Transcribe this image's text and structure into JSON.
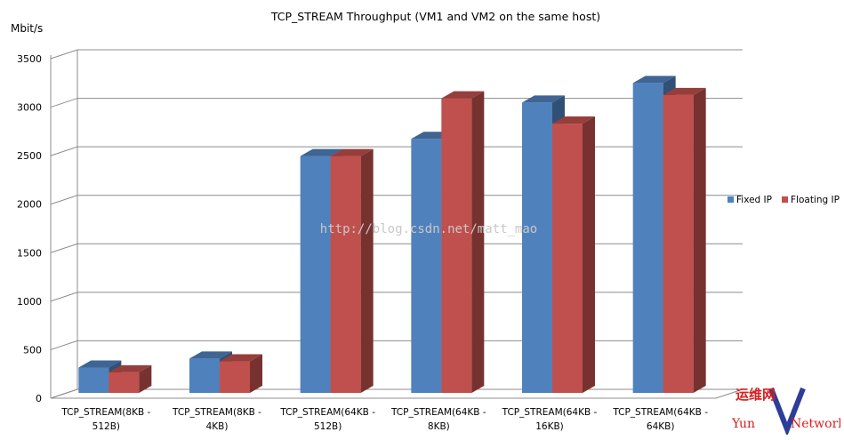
{
  "chart_data": {
    "type": "bar",
    "title": "TCP_STREAM Throughput (VM1 and VM2 on the same host)",
    "ylabel": "Mbit/s",
    "xlabel": "",
    "ylim": [
      0,
      3500
    ],
    "yticks": [
      0,
      500,
      1000,
      1500,
      2000,
      2500,
      3000,
      3500
    ],
    "grid": true,
    "legend_position": "right",
    "categories": [
      "TCP_STREAM(8KB - 512B)",
      "TCP_STREAM(8KB - 4KB)",
      "TCP_STREAM(64KB - 512B)",
      "TCP_STREAM(64KB - 8KB)",
      "TCP_STREAM(64KB - 16KB)",
      "TCP_STREAM(64KB - 64KB)"
    ],
    "category_lines": [
      [
        "TCP_STREAM(8KB -",
        "512B)"
      ],
      [
        "TCP_STREAM(8KB -",
        "4KB)"
      ],
      [
        "TCP_STREAM(64KB -",
        "512B)"
      ],
      [
        "TCP_STREAM(64KB -",
        "8KB)"
      ],
      [
        "TCP_STREAM(64KB -",
        "16KB)"
      ],
      [
        "TCP_STREAM(64KB -",
        "64KB)"
      ]
    ],
    "series": [
      {
        "name": "Fixed IP",
        "color": "#4f81bd",
        "values": [
          265,
          360,
          2480,
          2660,
          3040,
          3245
        ]
      },
      {
        "name": "Floating IP",
        "color": "#c0504d",
        "values": [
          215,
          330,
          2480,
          3085,
          2820,
          3120
        ]
      }
    ]
  },
  "watermark": {
    "url_text": "http://blog.csdn.net/matt_mao",
    "logo_cjk": "运维网",
    "logo_left": "Yun",
    "logo_right": "Network"
  }
}
